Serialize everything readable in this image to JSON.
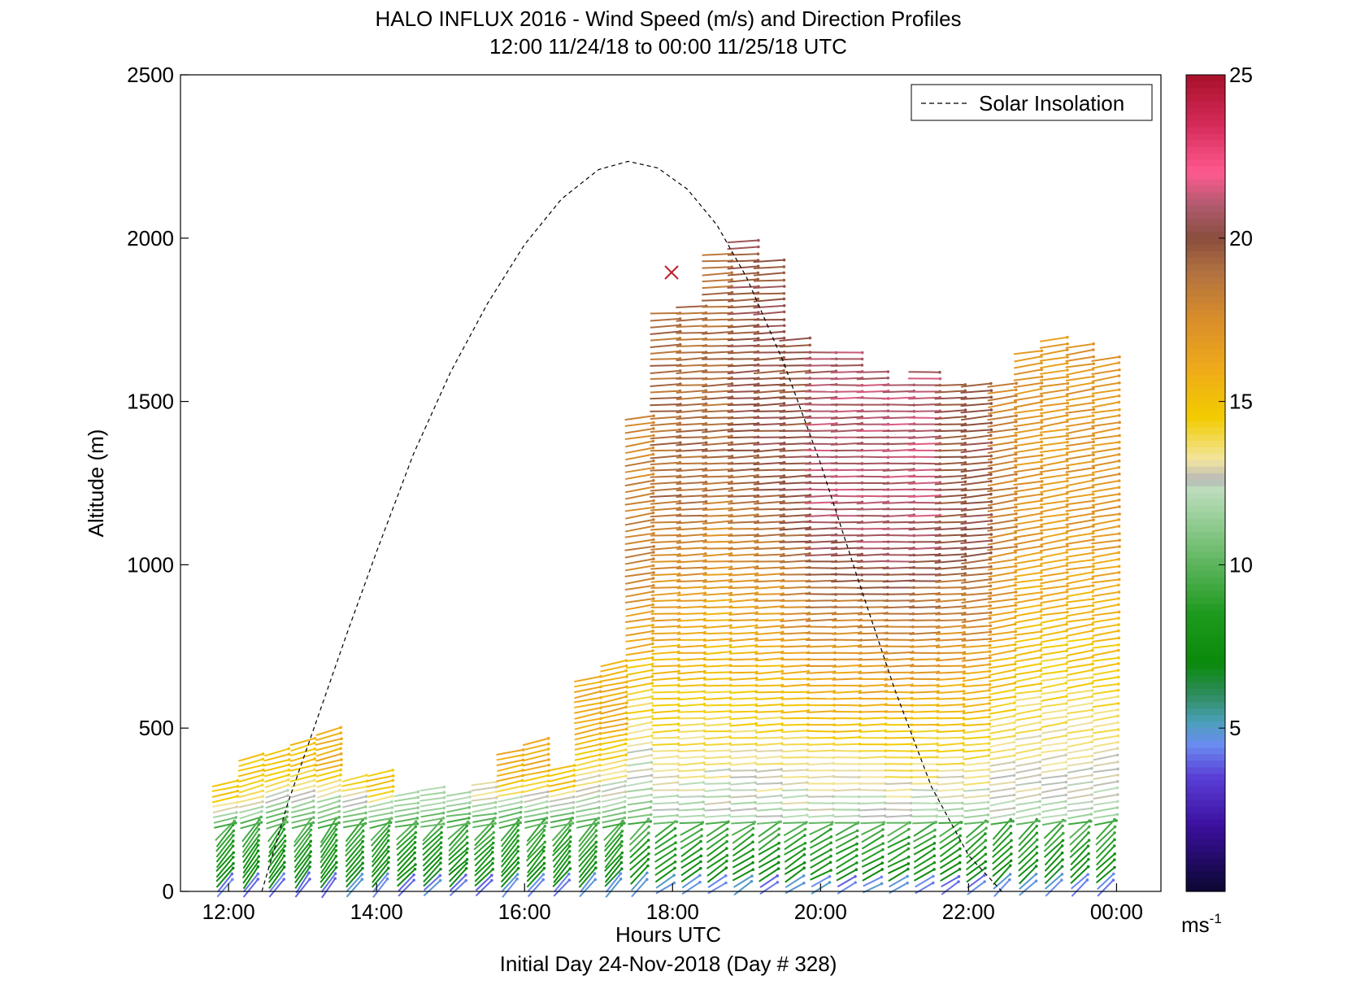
{
  "chart_data": {
    "type": "scatter",
    "title": "HALO INFLUX 2016 - Wind Speed (m/s) and Direction Profiles",
    "subtitle": "12:00 11/24/18 to 00:00 11/25/18  UTC",
    "xlabel": "Hours UTC",
    "footer": "Initial Day 24-Nov-2018 (Day # 328)",
    "ylabel": "Altitude (m)",
    "x_ticks": [
      "12:00",
      "14:00",
      "16:00",
      "18:00",
      "20:00",
      "22:00",
      "00:00"
    ],
    "x_tick_hours": [
      12,
      14,
      16,
      18,
      20,
      22,
      24
    ],
    "xlim": [
      11.35,
      24.6
    ],
    "y_ticks": [
      "0",
      "500",
      "1000",
      "1500",
      "2000",
      "2500"
    ],
    "y_tick_values": [
      0,
      500,
      1000,
      1500,
      2000,
      2500
    ],
    "ylim": [
      0,
      2500
    ],
    "legend": {
      "entries": [
        "Solar Insolation"
      ],
      "placement": "top-right"
    },
    "solar_insolation": {
      "style": "dashed",
      "color": "#000000",
      "x": [
        12.45,
        12.8,
        13.2,
        13.6,
        14.0,
        14.5,
        15.0,
        15.5,
        16.0,
        16.5,
        17.0,
        17.4,
        17.8,
        18.2,
        18.6,
        19.0,
        19.5,
        20.0,
        20.5,
        21.0,
        21.5,
        22.0,
        22.45
      ],
      "y": [
        0,
        270,
        530,
        790,
        1040,
        1340,
        1590,
        1800,
        1980,
        2120,
        2210,
        2235,
        2215,
        2150,
        2040,
        1880,
        1620,
        1310,
        960,
        620,
        320,
        110,
        0
      ]
    },
    "colorbar": {
      "label": "ms",
      "label_superscript": "-1",
      "ticks": [
        "5",
        "10",
        "15",
        "20",
        "25"
      ],
      "tick_values": [
        5,
        10,
        15,
        20,
        25
      ],
      "range": [
        0,
        25
      ]
    },
    "wind_profiles": {
      "encoding": "each barb drawn at (hour, altitude); direction in degrees (meteorological, direction wind comes from), speed in m/s",
      "columns": [
        {
          "x": 11.95,
          "top": 330,
          "dir": 250,
          "spd_top": 15,
          "spd_mid": 11
        },
        {
          "x": 12.3,
          "top": 420,
          "dir": 245,
          "spd_top": 15,
          "spd_mid": 11
        },
        {
          "x": 12.65,
          "top": 440,
          "dir": 245,
          "spd_top": 15,
          "spd_mid": 10
        },
        {
          "x": 13.0,
          "top": 470,
          "dir": 245,
          "spd_top": 15,
          "spd_mid": 10
        },
        {
          "x": 13.35,
          "top": 500,
          "dir": 245,
          "spd_top": 16,
          "spd_mid": 10
        },
        {
          "x": 13.7,
          "top": 360,
          "dir": 250,
          "spd_top": 14,
          "spd_mid": 10
        },
        {
          "x": 14.05,
          "top": 370,
          "dir": 250,
          "spd_top": 15,
          "spd_mid": 10
        },
        {
          "x": 14.4,
          "top": 310,
          "dir": 255,
          "spd_top": 12,
          "spd_mid": 10
        },
        {
          "x": 14.75,
          "top": 320,
          "dir": 255,
          "spd_top": 12,
          "spd_mid": 10
        },
        {
          "x": 15.1,
          "top": 300,
          "dir": 255,
          "spd_top": 12,
          "spd_mid": 10
        },
        {
          "x": 15.45,
          "top": 340,
          "dir": 255,
          "spd_top": 13,
          "spd_mid": 10
        },
        {
          "x": 15.8,
          "top": 440,
          "dir": 250,
          "spd_top": 16,
          "spd_mid": 10
        },
        {
          "x": 16.15,
          "top": 460,
          "dir": 250,
          "spd_top": 16,
          "spd_mid": 10
        },
        {
          "x": 16.5,
          "top": 380,
          "dir": 250,
          "spd_top": 15,
          "spd_mid": 10
        },
        {
          "x": 16.85,
          "top": 650,
          "dir": 250,
          "spd_top": 16,
          "spd_mid": 11
        },
        {
          "x": 17.2,
          "top": 700,
          "dir": 250,
          "spd_top": 16,
          "spd_mid": 11
        },
        {
          "x": 17.55,
          "top": 1450,
          "dir": 255,
          "spd_top": 18,
          "spd_mid": 11
        },
        {
          "x": 17.9,
          "top": 1780,
          "dir": 265,
          "spd_top": 19,
          "spd_mid": 12
        },
        {
          "x": 18.25,
          "top": 1800,
          "dir": 265,
          "spd_top": 19,
          "spd_mid": 12
        },
        {
          "x": 18.6,
          "top": 1950,
          "dir": 265,
          "spd_top": 19,
          "spd_mid": 12
        },
        {
          "x": 18.95,
          "top": 2000,
          "dir": 265,
          "spd_top": 20,
          "spd_mid": 12
        },
        {
          "x": 19.3,
          "top": 1930,
          "dir": 265,
          "spd_top": 20,
          "spd_mid": 12
        },
        {
          "x": 19.65,
          "top": 1700,
          "dir": 265,
          "spd_top": 20,
          "spd_mid": 12
        },
        {
          "x": 20.0,
          "top": 1650,
          "dir": 268,
          "spd_top": 21,
          "spd_mid": 12
        },
        {
          "x": 20.35,
          "top": 1660,
          "dir": 268,
          "spd_top": 21,
          "spd_mid": 12
        },
        {
          "x": 20.7,
          "top": 1600,
          "dir": 268,
          "spd_top": 21,
          "spd_mid": 12
        },
        {
          "x": 21.05,
          "top": 1560,
          "dir": 268,
          "spd_top": 21,
          "spd_mid": 12
        },
        {
          "x": 21.4,
          "top": 1600,
          "dir": 268,
          "spd_top": 21,
          "spd_mid": 12
        },
        {
          "x": 21.75,
          "top": 1560,
          "dir": 265,
          "spd_top": 20,
          "spd_mid": 12
        },
        {
          "x": 22.1,
          "top": 1560,
          "dir": 260,
          "spd_top": 20,
          "spd_mid": 12
        },
        {
          "x": 22.45,
          "top": 1560,
          "dir": 255,
          "spd_top": 18,
          "spd_mid": 12
        },
        {
          "x": 22.8,
          "top": 1650,
          "dir": 255,
          "spd_top": 17,
          "spd_mid": 12
        },
        {
          "x": 23.15,
          "top": 1700,
          "dir": 255,
          "spd_top": 17,
          "spd_mid": 12
        },
        {
          "x": 23.5,
          "top": 1680,
          "dir": 255,
          "spd_top": 17,
          "spd_mid": 12
        },
        {
          "x": 23.85,
          "top": 1640,
          "dir": 255,
          "spd_top": 17,
          "spd_mid": 12
        }
      ]
    }
  }
}
